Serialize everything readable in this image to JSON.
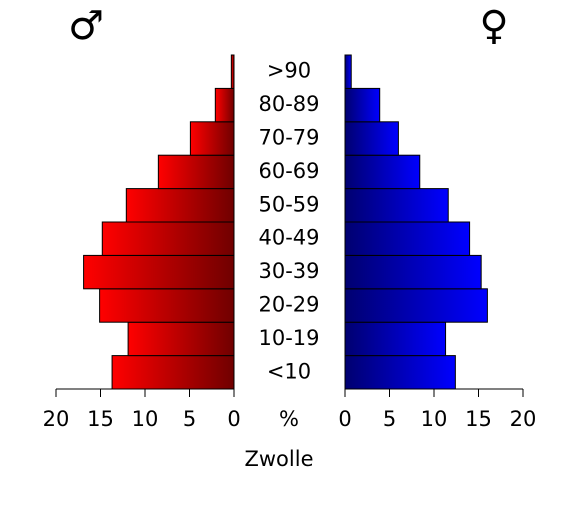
{
  "chart_data": {
    "type": "pyramid",
    "title": "Zwolle",
    "axis_label": "%",
    "categories": [
      "<10",
      "10-19",
      "20-29",
      "30-39",
      "40-49",
      "50-59",
      "60-69",
      "70-79",
      "80-89",
      ">90"
    ],
    "series": [
      {
        "name": "♂",
        "color": "#ff0000",
        "color_end": "#700000",
        "side": "left",
        "values": [
          13.7,
          11.9,
          15.1,
          16.9,
          14.8,
          12.1,
          8.5,
          4.9,
          2.1,
          0.3
        ]
      },
      {
        "name": "♀",
        "color": "#0000ff",
        "color_end": "#000070",
        "side": "right",
        "values": [
          12.4,
          11.3,
          16.0,
          15.3,
          14.0,
          11.6,
          8.4,
          6.0,
          3.9,
          0.7
        ]
      }
    ],
    "xlim": [
      0,
      20
    ],
    "xticks": [
      0,
      5,
      10,
      15,
      20
    ]
  }
}
